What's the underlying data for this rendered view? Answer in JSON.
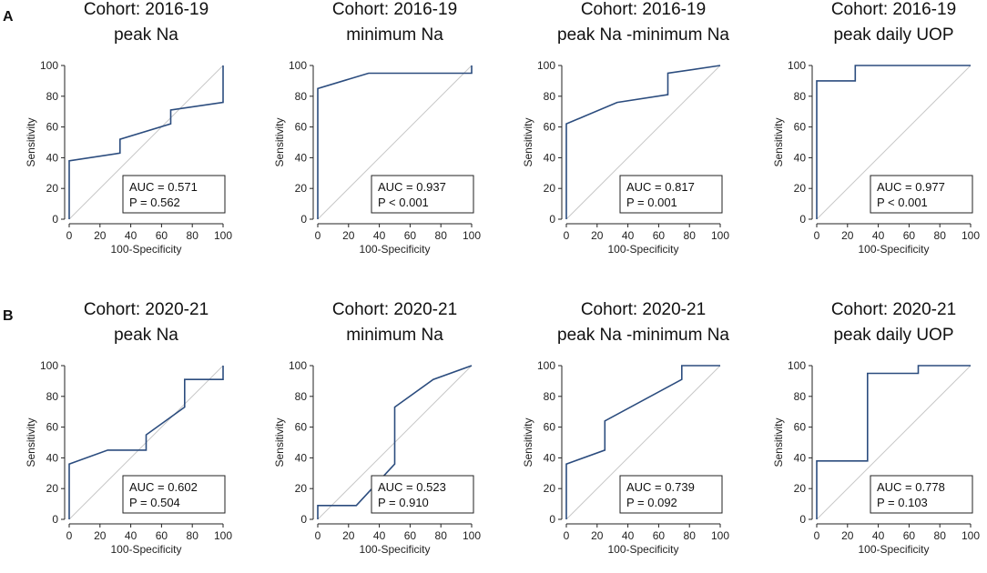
{
  "panel_labels": [
    "A",
    "B"
  ],
  "axes": {
    "xlabel": "100-Specificity",
    "ylabel": "Sensitivity",
    "xticks": [
      "0",
      "20",
      "40",
      "60",
      "80",
      "100"
    ],
    "yticks": [
      "0",
      "20",
      "40",
      "60",
      "80",
      "100"
    ]
  },
  "colors": {
    "roc_line": "#2b4c7e",
    "reference_line": "#c8c8c8"
  },
  "chart_data": [
    {
      "type": "line",
      "panel": "A",
      "title": [
        "Cohort: 2016-19",
        "peak Na"
      ],
      "xlabel": "100-Specificity",
      "ylabel": "Sensitivity",
      "xlim": [
        0,
        100
      ],
      "ylim": [
        0,
        100
      ],
      "series": [
        {
          "name": "ROC",
          "x": [
            0,
            0,
            33,
            33,
            66,
            66,
            100,
            100
          ],
          "y": [
            0,
            38,
            43,
            52,
            62,
            71,
            76,
            100
          ]
        }
      ],
      "auc": "AUC = 0.571",
      "p": "P = 0.562"
    },
    {
      "type": "line",
      "panel": "A",
      "title": [
        "Cohort: 2016-19",
        "minimum Na"
      ],
      "xlabel": "100-Specificity",
      "ylabel": "Sensitivity",
      "xlim": [
        0,
        100
      ],
      "ylim": [
        0,
        100
      ],
      "series": [
        {
          "name": "ROC",
          "x": [
            0,
            0,
            33,
            100,
            100
          ],
          "y": [
            0,
            85,
            95,
            95,
            100
          ]
        }
      ],
      "auc": "AUC = 0.937",
      "p": "P < 0.001"
    },
    {
      "type": "line",
      "panel": "A",
      "title": [
        "Cohort: 2016-19",
        "peak Na -minimum Na"
      ],
      "xlabel": "100-Specificity",
      "ylabel": "Sensitivity",
      "xlim": [
        0,
        100
      ],
      "ylim": [
        0,
        100
      ],
      "series": [
        {
          "name": "ROC",
          "x": [
            0,
            0,
            33,
            66,
            66,
            100
          ],
          "y": [
            0,
            62,
            76,
            81,
            95,
            100
          ]
        }
      ],
      "auc": "AUC = 0.817",
      "p": "P = 0.001"
    },
    {
      "type": "line",
      "panel": "A",
      "title": [
        "Cohort: 2016-19",
        "peak daily UOP"
      ],
      "xlabel": "100-Specificity",
      "ylabel": "Sensitivity",
      "xlim": [
        0,
        100
      ],
      "ylim": [
        0,
        100
      ],
      "series": [
        {
          "name": "ROC",
          "x": [
            0,
            0,
            25,
            25,
            100
          ],
          "y": [
            0,
            90,
            90,
            100,
            100
          ]
        }
      ],
      "auc": "AUC = 0.977",
      "p": "P < 0.001"
    },
    {
      "type": "line",
      "panel": "B",
      "title": [
        "Cohort: 2020-21",
        "peak Na"
      ],
      "xlabel": "100-Specificity",
      "ylabel": "Sensitivity",
      "xlim": [
        0,
        100
      ],
      "ylim": [
        0,
        100
      ],
      "series": [
        {
          "name": "ROC",
          "x": [
            0,
            0,
            25,
            50,
            50,
            75,
            75,
            100,
            100
          ],
          "y": [
            0,
            36,
            45,
            45,
            55,
            73,
            91,
            91,
            100
          ]
        }
      ],
      "auc": "AUC = 0.602",
      "p": "P = 0.504"
    },
    {
      "type": "line",
      "panel": "B",
      "title": [
        "Cohort: 2020-21",
        "minimum Na"
      ],
      "xlabel": "100-Specificity",
      "ylabel": "Sensitivity",
      "xlim": [
        0,
        100
      ],
      "ylim": [
        0,
        100
      ],
      "series": [
        {
          "name": "ROC",
          "x": [
            0,
            0,
            25,
            50,
            50,
            75,
            100
          ],
          "y": [
            0,
            9,
            9,
            36,
            73,
            91,
            100
          ]
        }
      ],
      "auc": "AUC = 0.523",
      "p": "P = 0.910"
    },
    {
      "type": "line",
      "panel": "B",
      "title": [
        "Cohort: 2020-21",
        "peak Na -minimum Na"
      ],
      "xlabel": "100-Specificity",
      "ylabel": "Sensitivity",
      "xlim": [
        0,
        100
      ],
      "ylim": [
        0,
        100
      ],
      "series": [
        {
          "name": "ROC",
          "x": [
            0,
            0,
            25,
            25,
            75,
            75,
            100
          ],
          "y": [
            0,
            36,
            45,
            64,
            91,
            100,
            100
          ]
        }
      ],
      "auc": "AUC = 0.739",
      "p": "P = 0.092"
    },
    {
      "type": "line",
      "panel": "B",
      "title": [
        "Cohort: 2020-21",
        "peak daily UOP"
      ],
      "xlabel": "100-Specificity",
      "ylabel": "Sensitivity",
      "xlim": [
        0,
        100
      ],
      "ylim": [
        0,
        100
      ],
      "series": [
        {
          "name": "ROC",
          "x": [
            0,
            0,
            33,
            33,
            66,
            66,
            100
          ],
          "y": [
            0,
            38,
            38,
            95,
            95,
            100,
            100
          ]
        }
      ],
      "auc": "AUC = 0.778",
      "p": "P = 0.103"
    }
  ]
}
